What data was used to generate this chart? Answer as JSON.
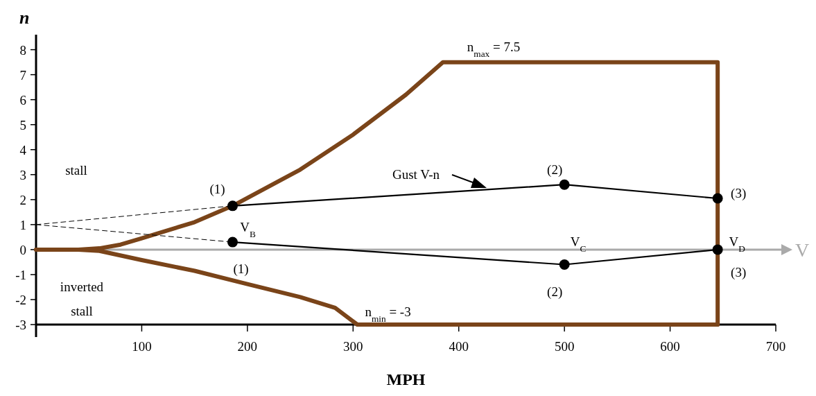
{
  "chart_data": {
    "type": "line",
    "xlabel": "MPH",
    "ylabel": "n",
    "xlim": [
      0,
      700
    ],
    "xticks": [
      100,
      200,
      300,
      400,
      500,
      600,
      700
    ],
    "ylim": [
      -3,
      8.6
    ],
    "yticks": [
      -3,
      -2,
      -1,
      0,
      1,
      2,
      3,
      4,
      5,
      6,
      7,
      8
    ],
    "grid": false,
    "series": [
      {
        "color": "#7a4419",
        "line_style": "solid",
        "marker": "none",
        "x": [
          0,
          40,
          60,
          80,
          100,
          150,
          186,
          250,
          300,
          350,
          385,
          645,
          645
        ],
        "values": [
          0,
          0,
          0.05,
          0.2,
          0.45,
          1.1,
          1.75,
          3.2,
          4.6,
          6.2,
          7.5,
          7.5,
          -3
        ]
      },
      {
        "color": "#7a4419",
        "line_style": "solid",
        "marker": "none",
        "x": [
          0,
          40,
          60,
          100,
          150,
          200,
          250,
          283,
          304,
          645
        ],
        "values": [
          0,
          0,
          -0.05,
          -0.42,
          -0.85,
          -1.38,
          -1.9,
          -2.33,
          -3,
          -3
        ]
      },
      {
        "color": "#000000",
        "line_style": "dashed",
        "x": [
          0,
          186
        ],
        "values": [
          1,
          1.75
        ]
      },
      {
        "color": "#000000",
        "line_style": "dashed",
        "x": [
          0,
          186
        ],
        "values": [
          1,
          0.3
        ]
      },
      {
        "color": "#000000",
        "line_style": "solid",
        "marker": "circle",
        "x": [
          186,
          500,
          645
        ],
        "values": [
          1.75,
          2.6,
          2.05
        ]
      },
      {
        "color": "#000000",
        "line_style": "solid",
        "marker": "circle",
        "x": [
          186,
          500,
          645
        ],
        "values": [
          0.3,
          -0.6,
          0
        ]
      }
    ],
    "ref_lines": [
      {
        "axis": "y",
        "value": 0,
        "label": "V",
        "color": "#aaaaaa"
      }
    ],
    "annotations": [
      "stall",
      "inverted",
      "stall",
      {
        "text": "(1)",
        "x": 186,
        "y": 1.75
      },
      {
        "text": "V$_{B}$",
        "x": 186,
        "y": 1.75
      },
      {
        "text": "(1)",
        "x": 186,
        "y": 0.3
      },
      "Gust V-n",
      {
        "text": "(2)",
        "x": 500,
        "y": 2.6
      },
      {
        "text": "(2)",
        "x": 500,
        "y": -0.6
      },
      {
        "text": "(3)",
        "x": 645,
        "y": 2.05
      },
      {
        "text": "(3)",
        "x": 645,
        "y": 0
      },
      {
        "text": "V$_{C}$",
        "x": 500,
        "y": 0
      },
      {
        "text": "V$_{D}$",
        "x": 645,
        "y": 0
      },
      {
        "text": "n$_{max}$ = 7.5",
        "x": 433,
        "y": 7.5
      },
      {
        "text": "n$_{min}$ = -3",
        "x": 333,
        "y": -3
      }
    ]
  }
}
